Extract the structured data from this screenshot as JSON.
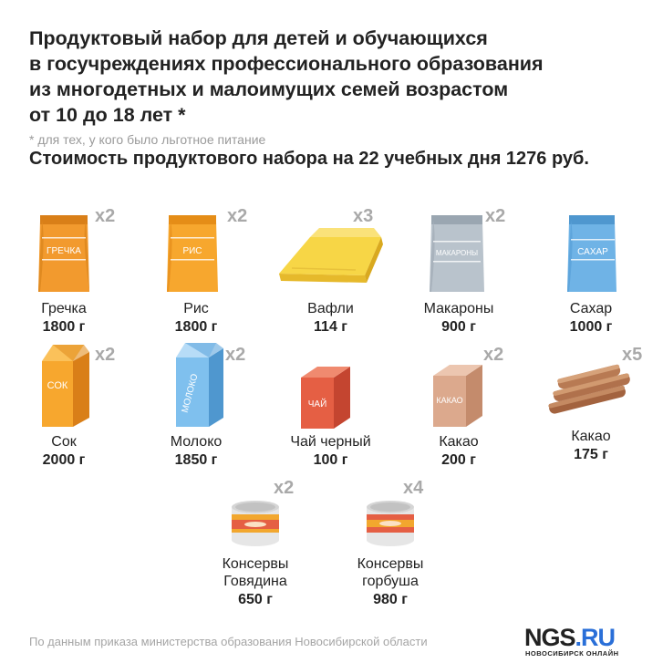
{
  "title_lines": [
    "Продуктовый набор для детей и обучающихся",
    "в госучреждениях профессионального образования",
    "из многодетных и малоимущих семей возрастом",
    "от 10 до 18 лет *"
  ],
  "note": "*  для тех, у кого было льготное питание",
  "cost": "Стоимость продуктового набора на 22 учебных дня 1276 руб.",
  "colors": {
    "orange": "#f29a2e",
    "blue": "#6fb3e6",
    "gray": "#b9c3cc",
    "yellow": "#f7d646",
    "red": "#e55f44",
    "cocoa": "#dca98d",
    "wafer_roll": "#b0714c"
  },
  "items": [
    {
      "icon": "buckwheat-bag-icon",
      "pack_label": "ГРЕЧКА",
      "qty": "x2",
      "name": "Гречка",
      "weight": "1800 г"
    },
    {
      "icon": "rice-bag-icon",
      "pack_label": "РИС",
      "qty": "x2",
      "name": "Рис",
      "weight": "1800 г"
    },
    {
      "icon": "waffles-icon",
      "pack_label": "",
      "qty": "x3",
      "name": "Вафли",
      "weight": "114 г"
    },
    {
      "icon": "pasta-bag-icon",
      "pack_label": "МАКАРОНЫ",
      "qty": "x2",
      "name": "Макароны",
      "weight": "900 г"
    },
    {
      "icon": "sugar-bag-icon",
      "pack_label": "САХАР",
      "qty": "",
      "name": "Сахар",
      "weight": "1000 г"
    },
    {
      "icon": "juice-carton-icon",
      "pack_label": "СОК",
      "qty": "x2",
      "name": "Сок",
      "weight": "2000 г"
    },
    {
      "icon": "milk-carton-icon",
      "pack_label": "МОЛОКО",
      "qty": "x2",
      "name": "Молоко",
      "weight": "1850 г"
    },
    {
      "icon": "tea-box-icon",
      "pack_label": "ЧАЙ",
      "qty": "",
      "name": "Чай черный",
      "weight": "100 г"
    },
    {
      "icon": "cocoa-box-icon",
      "pack_label": "КАКАО",
      "qty": "x2",
      "name": "Какао",
      "weight": "200 г"
    },
    {
      "icon": "wafer-rolls-icon",
      "pack_label": "",
      "qty": "x5",
      "name": "Какао",
      "weight": "175 г"
    },
    {
      "icon": "beef-can-icon",
      "pack_label": "",
      "qty": "x2",
      "name": "Консервы\nГовядина",
      "name_lines": [
        "Консервы",
        "Говядина"
      ],
      "weight": "650 г"
    },
    {
      "icon": "salmon-can-icon",
      "pack_label": "",
      "qty": "x4",
      "name": "Консервы\nгорбуша",
      "name_lines": [
        "Консервы",
        "горбуша"
      ],
      "weight": "980 г"
    }
  ],
  "footer": "По данным приказа министерства образования Новосибирской области",
  "logo": {
    "main": "NGS",
    "ru": "RU",
    "dot": ".",
    "sub": "НОВОСИБИРСК ОНЛАЙН"
  }
}
